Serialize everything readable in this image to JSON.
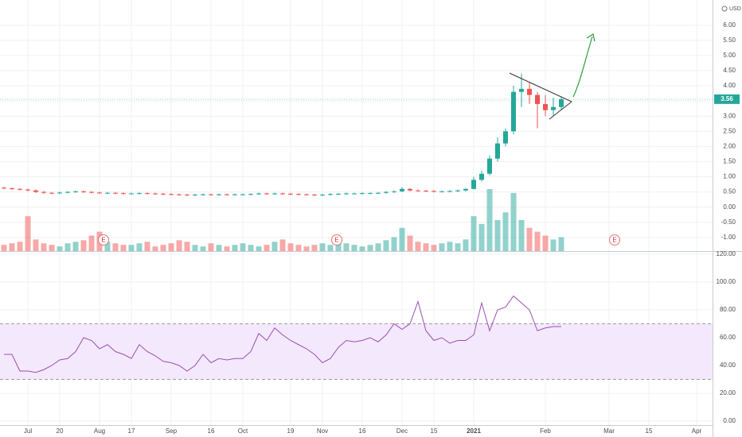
{
  "chart_data": {
    "type": "candlestick",
    "currency": "USD",
    "up_color": "#26a69a",
    "down_color": "#ef5350",
    "grid": true,
    "categories": [
      null,
      null,
      null,
      "Jul",
      null,
      null,
      null,
      "20",
      null,
      null,
      null,
      null,
      "Aug",
      null,
      null,
      null,
      "17",
      null,
      null,
      null,
      null,
      "Sep",
      null,
      null,
      null,
      null,
      "16",
      null,
      null,
      null,
      "Oct",
      null,
      null,
      null,
      null,
      null,
      "19",
      null,
      null,
      null,
      "Nov",
      null,
      null,
      null,
      null,
      "16",
      null,
      null,
      null,
      null,
      "Dec",
      null,
      null,
      null,
      "15",
      null,
      null,
      null,
      null,
      "2021",
      null,
      null,
      null,
      null,
      null,
      null,
      null,
      null,
      "Feb",
      null,
      null,
      null,
      null,
      null,
      null,
      null,
      "Mar",
      null,
      null,
      null,
      null,
      "15",
      null,
      null,
      null,
      null,
      null,
      "Apr",
      null
    ],
    "open": [
      0.64,
      0.62,
      0.6,
      0.58,
      0.55,
      0.5,
      0.47,
      0.46,
      0.48,
      0.5,
      0.52,
      0.5,
      0.48,
      0.47,
      0.47,
      0.46,
      0.45,
      0.45,
      0.46,
      0.45,
      0.44,
      0.43,
      0.42,
      0.41,
      0.4,
      0.41,
      0.42,
      0.41,
      0.42,
      0.41,
      0.42,
      0.42,
      0.43,
      0.45,
      0.44,
      0.45,
      0.44,
      0.43,
      0.42,
      0.41,
      0.4,
      0.41,
      0.43,
      0.44,
      0.45,
      0.45,
      0.46,
      0.46,
      0.47,
      0.5,
      0.52,
      0.6,
      0.55,
      0.54,
      0.53,
      0.52,
      0.52,
      0.53,
      0.55,
      0.6,
      0.9,
      1.1,
      1.6,
      2.1,
      2.5,
      3.8,
      3.9,
      3.7,
      3.4,
      3.2,
      3.3,
      null,
      null,
      null,
      null,
      null,
      null,
      null,
      null,
      null,
      null,
      null,
      null,
      null,
      null,
      null,
      null,
      null,
      null
    ],
    "high": [
      0.67,
      0.65,
      0.63,
      0.61,
      0.58,
      0.53,
      0.5,
      0.51,
      0.53,
      0.55,
      0.55,
      0.53,
      0.51,
      0.5,
      0.5,
      0.49,
      0.48,
      0.49,
      0.49,
      0.48,
      0.47,
      0.46,
      0.45,
      0.44,
      0.44,
      0.45,
      0.45,
      0.45,
      0.45,
      0.45,
      0.45,
      0.46,
      0.48,
      0.48,
      0.48,
      0.48,
      0.47,
      0.46,
      0.45,
      0.44,
      0.44,
      0.46,
      0.47,
      0.48,
      0.48,
      0.49,
      0.49,
      0.5,
      0.53,
      0.55,
      0.66,
      0.63,
      0.58,
      0.57,
      0.56,
      0.55,
      0.56,
      0.58,
      0.63,
      1.0,
      1.2,
      1.7,
      2.3,
      2.6,
      4.0,
      4.4,
      4.1,
      3.8,
      3.7,
      3.6,
      3.65,
      null,
      null,
      null,
      null,
      null,
      null,
      null,
      null,
      null,
      null,
      null,
      null,
      null,
      null,
      null,
      null,
      null,
      null
    ],
    "low": [
      0.59,
      0.57,
      0.55,
      0.52,
      0.47,
      0.44,
      0.43,
      0.43,
      0.45,
      0.47,
      0.47,
      0.45,
      0.44,
      0.44,
      0.43,
      0.42,
      0.42,
      0.42,
      0.42,
      0.41,
      0.4,
      0.39,
      0.38,
      0.37,
      0.37,
      0.38,
      0.38,
      0.38,
      0.38,
      0.38,
      0.39,
      0.39,
      0.4,
      0.41,
      0.41,
      0.41,
      0.4,
      0.39,
      0.38,
      0.37,
      0.37,
      0.38,
      0.4,
      0.41,
      0.42,
      0.42,
      0.43,
      0.43,
      0.44,
      0.47,
      0.49,
      0.52,
      0.51,
      0.5,
      0.49,
      0.49,
      0.49,
      0.5,
      0.52,
      0.58,
      0.85,
      1.05,
      1.5,
      2.0,
      2.4,
      3.3,
      3.4,
      2.6,
      3.0,
      3.0,
      3.2,
      null,
      null,
      null,
      null,
      null,
      null,
      null,
      null,
      null,
      null,
      null,
      null,
      null,
      null,
      null,
      null,
      null,
      null
    ],
    "close": [
      0.62,
      0.6,
      0.58,
      0.55,
      0.5,
      0.47,
      0.46,
      0.48,
      0.5,
      0.52,
      0.5,
      0.48,
      0.47,
      0.47,
      0.46,
      0.45,
      0.45,
      0.46,
      0.45,
      0.44,
      0.43,
      0.42,
      0.41,
      0.4,
      0.41,
      0.42,
      0.41,
      0.42,
      0.41,
      0.42,
      0.42,
      0.43,
      0.45,
      0.44,
      0.45,
      0.44,
      0.43,
      0.42,
      0.41,
      0.4,
      0.41,
      0.43,
      0.44,
      0.45,
      0.45,
      0.46,
      0.46,
      0.47,
      0.5,
      0.52,
      0.6,
      0.55,
      0.54,
      0.53,
      0.52,
      0.52,
      0.53,
      0.55,
      0.6,
      0.9,
      1.1,
      1.6,
      2.1,
      2.5,
      3.8,
      3.9,
      3.7,
      3.4,
      3.2,
      3.3,
      3.56,
      null,
      null,
      null,
      null,
      null,
      null,
      null,
      null,
      null,
      null,
      null,
      null,
      null,
      null,
      null,
      null,
      null,
      null
    ],
    "volume": [
      8,
      10,
      12,
      45,
      15,
      10,
      8,
      6,
      10,
      12,
      14,
      20,
      25,
      12,
      10,
      8,
      8,
      10,
      12,
      6,
      8,
      10,
      14,
      12,
      8,
      6,
      10,
      8,
      6,
      8,
      10,
      8,
      6,
      8,
      12,
      15,
      10,
      8,
      6,
      8,
      10,
      8,
      12,
      10,
      8,
      6,
      8,
      10,
      14,
      18,
      30,
      20,
      12,
      10,
      8,
      10,
      12,
      10,
      15,
      45,
      35,
      80,
      40,
      50,
      75,
      40,
      30,
      25,
      20,
      15,
      18,
      null,
      null,
      null,
      null,
      null,
      null,
      null,
      null,
      null,
      null,
      null,
      null,
      null,
      null,
      null,
      null,
      null,
      null
    ],
    "last_price": 3.56,
    "event_label": "E",
    "ylim": [
      -1.45,
      6.7
    ],
    "yticks": [
      {
        "value": 6,
        "label": "6.00"
      },
      {
        "value": 5.5,
        "label": "5.50"
      },
      {
        "value": 5,
        "label": "5.00"
      },
      {
        "value": 4.5,
        "label": "4.50"
      },
      {
        "value": 4,
        "label": "4.00"
      },
      {
        "value": 3.5,
        "label": "3.50"
      },
      {
        "value": 3,
        "label": "3.00"
      },
      {
        "value": 2.5,
        "label": "2.50"
      },
      {
        "value": 2,
        "label": "2.00"
      },
      {
        "value": 1.5,
        "label": "1.50"
      },
      {
        "value": 1,
        "label": "1.00"
      },
      {
        "value": 0.5,
        "label": "0.50"
      },
      {
        "value": 0,
        "label": "0.00"
      },
      {
        "value": -0.5,
        "label": "-0.50"
      },
      {
        "value": -1,
        "label": "-1.00"
      }
    ],
    "rsi": {
      "type": "line",
      "color": "#9c4fb3",
      "band": [
        30,
        70
      ],
      "band_color": "#f3e8fc",
      "values": [
        48,
        48,
        36,
        36,
        35,
        37,
        40,
        44,
        45,
        50,
        60,
        58,
        52,
        55,
        50,
        48,
        45,
        55,
        50,
        47,
        43,
        42,
        40,
        36,
        40,
        48,
        42,
        45,
        44,
        45,
        45,
        50,
        63,
        58,
        67,
        62,
        58,
        55,
        52,
        48,
        42,
        45,
        53,
        58,
        57,
        58,
        60,
        57,
        62,
        70,
        66,
        70,
        86,
        65,
        58,
        60,
        56,
        58,
        58,
        62,
        85,
        65,
        80,
        82,
        90,
        85,
        80,
        65,
        67,
        68,
        68,
        null,
        null,
        null,
        null,
        null,
        null,
        null,
        null,
        null,
        null,
        null,
        null,
        null,
        null,
        null,
        null,
        null,
        null
      ],
      "ylim": [
        0,
        120
      ],
      "yticks": [
        {
          "value": 120,
          "label": "120.00"
        },
        {
          "value": 100,
          "label": "100.00"
        },
        {
          "value": 80,
          "label": "80.00"
        },
        {
          "value": 60,
          "label": "60.00"
        },
        {
          "value": 40,
          "label": "40.00"
        },
        {
          "value": 20,
          "label": "20.00"
        },
        {
          "value": 0,
          "label": "0.00"
        }
      ]
    }
  }
}
